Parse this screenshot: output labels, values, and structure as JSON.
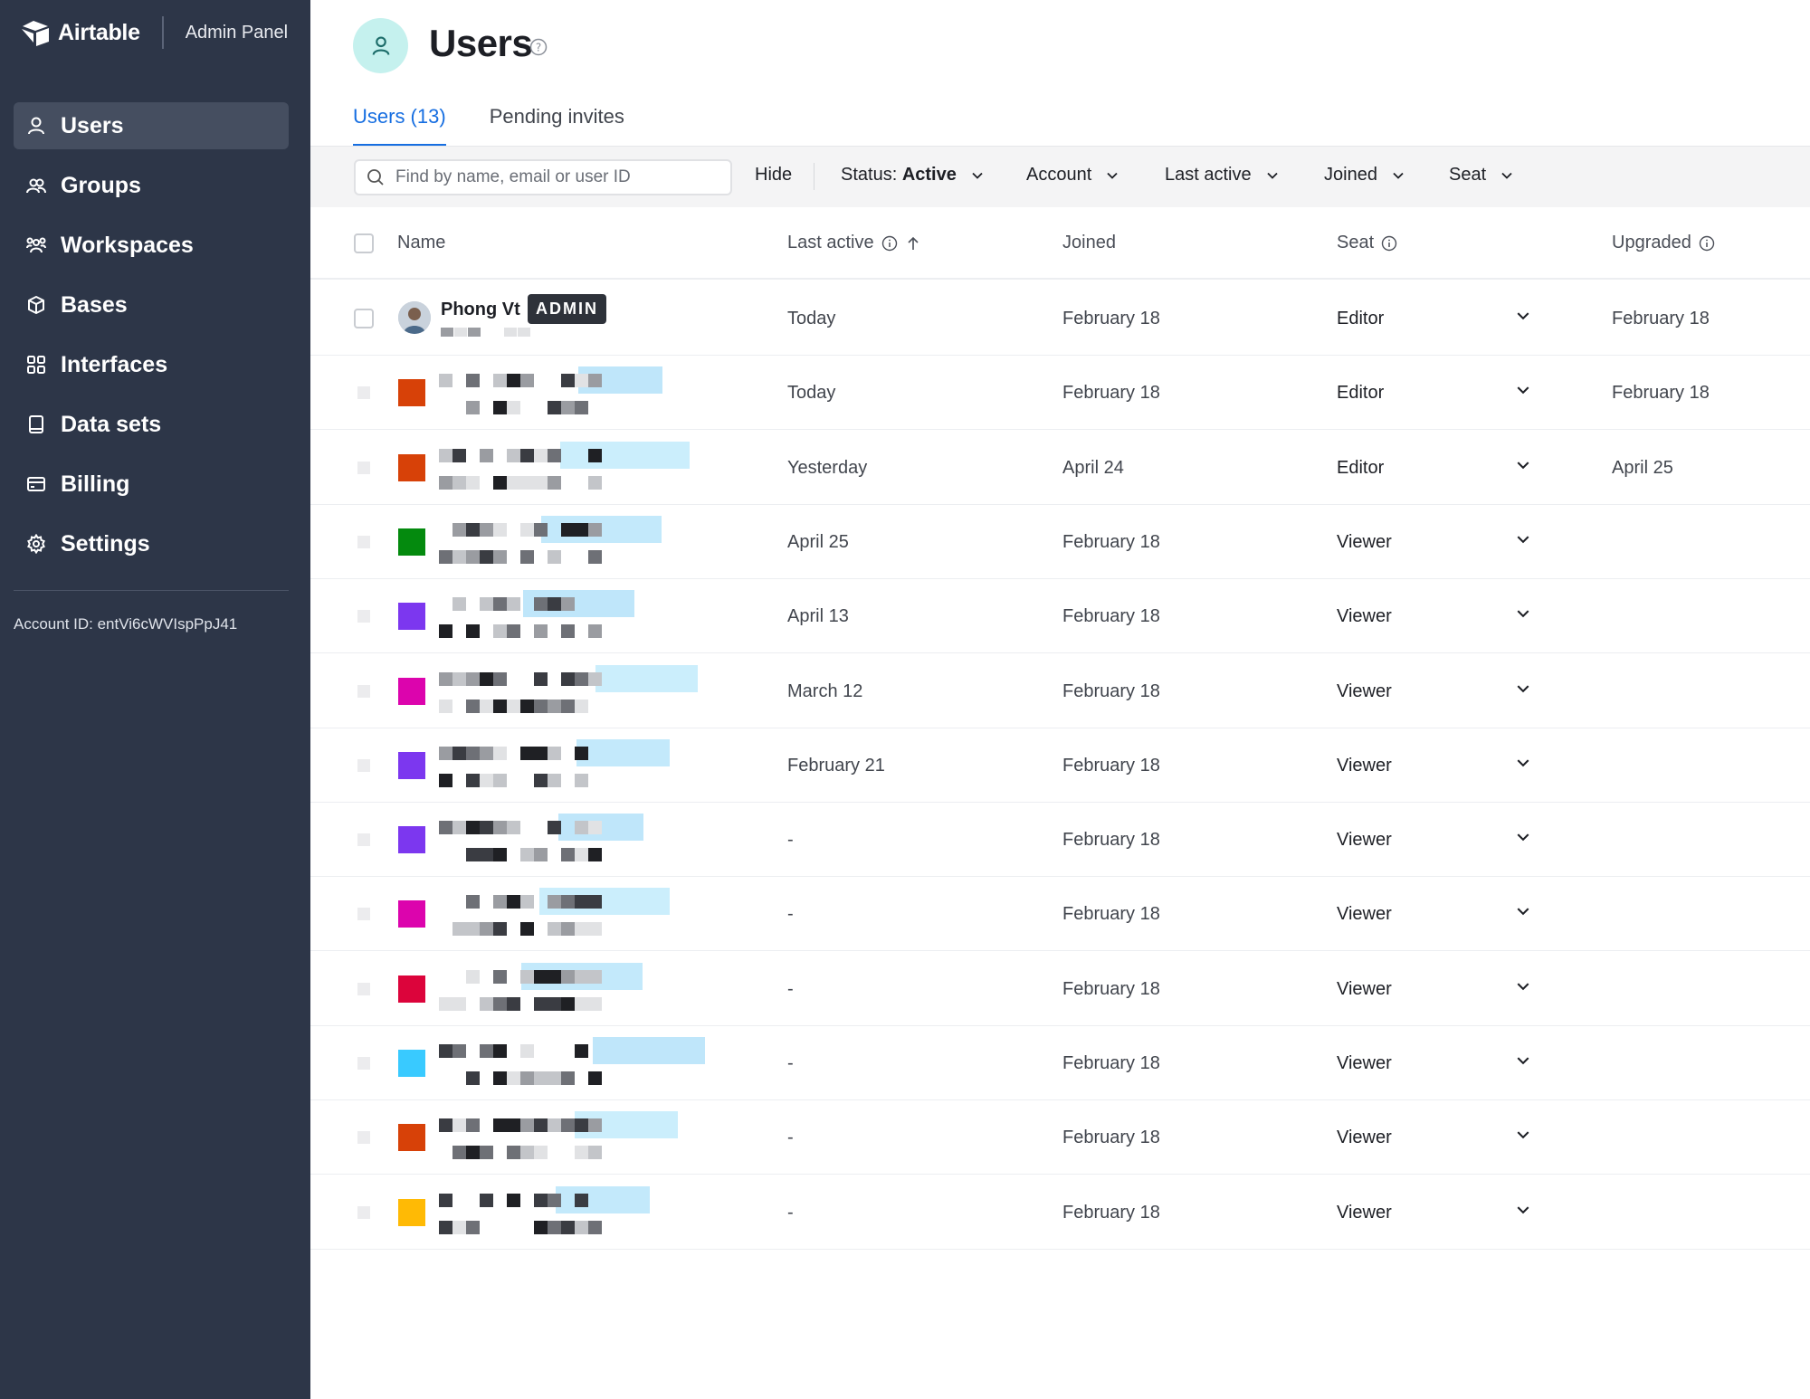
{
  "brand": {
    "name": "Airtable",
    "section": "Admin Panel"
  },
  "sidebar": {
    "items": [
      {
        "label": "Users",
        "icon": "user-icon",
        "active": true
      },
      {
        "label": "Groups",
        "icon": "group-icon",
        "active": false
      },
      {
        "label": "Workspaces",
        "icon": "workspace-icon",
        "active": false
      },
      {
        "label": "Bases",
        "icon": "cube-icon",
        "active": false
      },
      {
        "label": "Interfaces",
        "icon": "grid-icon",
        "active": false
      },
      {
        "label": "Data sets",
        "icon": "book-icon",
        "active": false
      },
      {
        "label": "Billing",
        "icon": "credit-card-icon",
        "active": false
      },
      {
        "label": "Settings",
        "icon": "gear-icon",
        "active": false
      }
    ],
    "account_id": "Account ID: entVi6cWVIspPpJ41"
  },
  "page": {
    "title": "Users"
  },
  "tabs": [
    {
      "label": "Users (13)",
      "active": true
    },
    {
      "label": "Pending invites",
      "active": false
    }
  ],
  "toolbar": {
    "search_placeholder": "Find by name, email or user ID",
    "hide_label": "Hide",
    "status_prefix": "Status:",
    "status_value": "Active",
    "account_label": "Account",
    "last_active_label": "Last active",
    "joined_label": "Joined",
    "seat_label": "Seat"
  },
  "table": {
    "headers": {
      "name": "Name",
      "last_active": "Last active",
      "joined": "Joined",
      "seat": "Seat",
      "upgraded": "Upgraded"
    },
    "rows": [
      {
        "name": "Phong Vt",
        "badge": "ADMIN",
        "last_active": "Today",
        "joined": "February 18",
        "seat": "Editor",
        "upgraded": "February 18",
        "color": "photo"
      },
      {
        "name": "",
        "last_active": "Today",
        "joined": "February 18",
        "seat": "Editor",
        "upgraded": "February 18",
        "color": "#d74108"
      },
      {
        "name": "",
        "last_active": "Yesterday",
        "joined": "April 24",
        "seat": "Editor",
        "upgraded": "April 25",
        "color": "#d74108"
      },
      {
        "name": "",
        "last_active": "April 25",
        "joined": "February 18",
        "seat": "Viewer",
        "upgraded": "",
        "color": "#048a0e"
      },
      {
        "name": "",
        "last_active": "April 13",
        "joined": "February 18",
        "seat": "Viewer",
        "upgraded": "",
        "color": "#7c37ef"
      },
      {
        "name": "",
        "last_active": "March 12",
        "joined": "February 18",
        "seat": "Viewer",
        "upgraded": "",
        "color": "#dc04ad"
      },
      {
        "name": "",
        "last_active": "February 21",
        "joined": "February 18",
        "seat": "Viewer",
        "upgraded": "",
        "color": "#7c37ef"
      },
      {
        "name": "",
        "last_active": "-",
        "joined": "February 18",
        "seat": "Viewer",
        "upgraded": "",
        "color": "#7c37ef"
      },
      {
        "name": "",
        "last_active": "-",
        "joined": "February 18",
        "seat": "Viewer",
        "upgraded": "",
        "color": "#dc04ad"
      },
      {
        "name": "",
        "last_active": "-",
        "joined": "February 18",
        "seat": "Viewer",
        "upgraded": "",
        "color": "#dc043b"
      },
      {
        "name": "",
        "last_active": "-",
        "joined": "February 18",
        "seat": "Viewer",
        "upgraded": "",
        "color": "#39caff"
      },
      {
        "name": "",
        "last_active": "-",
        "joined": "February 18",
        "seat": "Viewer",
        "upgraded": "",
        "color": "#d74108"
      },
      {
        "name": "",
        "last_active": "-",
        "joined": "February 18",
        "seat": "Viewer",
        "upgraded": "",
        "color": "#ffba05"
      }
    ]
  },
  "colors": {
    "sidebar_bg": "#2d3648",
    "accent": "#166ee1",
    "avatar_bg": "#c5f1ee"
  }
}
